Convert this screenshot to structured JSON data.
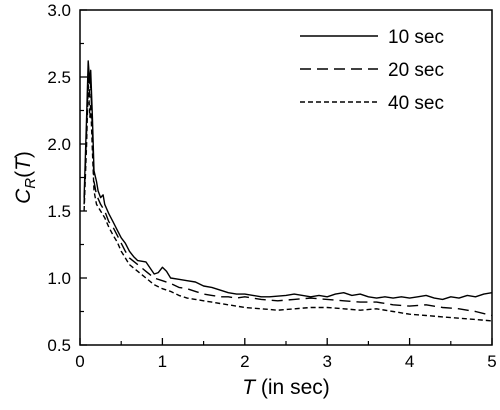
{
  "chart_data": {
    "type": "line",
    "xlabel": {
      "var": "T",
      "rest": " (in sec)"
    },
    "ylabel": {
      "base": "C",
      "sub": "R",
      "open": "(",
      "var": "T",
      "close": ")"
    },
    "xlim": [
      0,
      5
    ],
    "ylim": [
      0.5,
      3.0
    ],
    "xticks": [
      0,
      1,
      2,
      3,
      4,
      5
    ],
    "xtick_labels": [
      "0",
      "1",
      "2",
      "3",
      "4",
      "5"
    ],
    "yticks": [
      0.5,
      1.0,
      1.5,
      2.0,
      2.5,
      3.0
    ],
    "ytick_labels": [
      "0.5",
      "1.0",
      "1.5",
      "2.0",
      "2.5",
      "3.0"
    ],
    "grid": false,
    "legend_position": "top-right",
    "colors": {
      "line": "#000000",
      "axes": "#000000"
    },
    "series": [
      {
        "name": "10 sec",
        "style": "solid",
        "points": [
          [
            0.05,
            1.6
          ],
          [
            0.08,
            2.2
          ],
          [
            0.1,
            2.62
          ],
          [
            0.12,
            2.45
          ],
          [
            0.13,
            2.55
          ],
          [
            0.15,
            2.2
          ],
          [
            0.17,
            1.8
          ],
          [
            0.2,
            1.72
          ],
          [
            0.22,
            1.65
          ],
          [
            0.25,
            1.6
          ],
          [
            0.28,
            1.62
          ],
          [
            0.3,
            1.55
          ],
          [
            0.35,
            1.48
          ],
          [
            0.4,
            1.42
          ],
          [
            0.45,
            1.36
          ],
          [
            0.5,
            1.3
          ],
          [
            0.55,
            1.26
          ],
          [
            0.6,
            1.2
          ],
          [
            0.65,
            1.16
          ],
          [
            0.7,
            1.13
          ],
          [
            0.8,
            1.12
          ],
          [
            0.9,
            1.03
          ],
          [
            0.95,
            1.04
          ],
          [
            1.0,
            1.08
          ],
          [
            1.05,
            1.05
          ],
          [
            1.1,
            1.0
          ],
          [
            1.2,
            0.99
          ],
          [
            1.3,
            0.98
          ],
          [
            1.4,
            0.97
          ],
          [
            1.5,
            0.94
          ],
          [
            1.6,
            0.93
          ],
          [
            1.7,
            0.91
          ],
          [
            1.8,
            0.89
          ],
          [
            1.9,
            0.88
          ],
          [
            2.0,
            0.88
          ],
          [
            2.1,
            0.87
          ],
          [
            2.2,
            0.86
          ],
          [
            2.3,
            0.86
          ],
          [
            2.5,
            0.87
          ],
          [
            2.6,
            0.88
          ],
          [
            2.7,
            0.87
          ],
          [
            2.8,
            0.86
          ],
          [
            2.9,
            0.87
          ],
          [
            3.0,
            0.86
          ],
          [
            3.1,
            0.88
          ],
          [
            3.2,
            0.89
          ],
          [
            3.3,
            0.87
          ],
          [
            3.4,
            0.88
          ],
          [
            3.5,
            0.86
          ],
          [
            3.6,
            0.85
          ],
          [
            3.7,
            0.86
          ],
          [
            3.8,
            0.85
          ],
          [
            3.9,
            0.86
          ],
          [
            4.0,
            0.85
          ],
          [
            4.1,
            0.86
          ],
          [
            4.2,
            0.87
          ],
          [
            4.3,
            0.85
          ],
          [
            4.4,
            0.84
          ],
          [
            4.5,
            0.86
          ],
          [
            4.6,
            0.85
          ],
          [
            4.7,
            0.87
          ],
          [
            4.8,
            0.86
          ],
          [
            4.9,
            0.88
          ],
          [
            5.0,
            0.89
          ]
        ]
      },
      {
        "name": "20 sec",
        "style": "dashed",
        "points": [
          [
            0.05,
            1.55
          ],
          [
            0.08,
            2.1
          ],
          [
            0.1,
            2.55
          ],
          [
            0.12,
            2.35
          ],
          [
            0.13,
            2.45
          ],
          [
            0.15,
            2.1
          ],
          [
            0.17,
            1.72
          ],
          [
            0.2,
            1.62
          ],
          [
            0.25,
            1.55
          ],
          [
            0.3,
            1.5
          ],
          [
            0.35,
            1.42
          ],
          [
            0.4,
            1.38
          ],
          [
            0.45,
            1.32
          ],
          [
            0.5,
            1.26
          ],
          [
            0.55,
            1.2
          ],
          [
            0.6,
            1.15
          ],
          [
            0.7,
            1.1
          ],
          [
            0.8,
            1.05
          ],
          [
            0.9,
            1.0
          ],
          [
            1.0,
            0.98
          ],
          [
            1.1,
            0.96
          ],
          [
            1.2,
            0.93
          ],
          [
            1.3,
            0.92
          ],
          [
            1.4,
            0.9
          ],
          [
            1.5,
            0.88
          ],
          [
            1.6,
            0.87
          ],
          [
            1.7,
            0.86
          ],
          [
            1.8,
            0.86
          ],
          [
            1.9,
            0.85
          ],
          [
            2.0,
            0.86
          ],
          [
            2.2,
            0.84
          ],
          [
            2.4,
            0.83
          ],
          [
            2.6,
            0.84
          ],
          [
            2.8,
            0.85
          ],
          [
            3.0,
            0.84
          ],
          [
            3.2,
            0.83
          ],
          [
            3.4,
            0.82
          ],
          [
            3.6,
            0.82
          ],
          [
            3.8,
            0.8
          ],
          [
            4.0,
            0.79
          ],
          [
            4.2,
            0.8
          ],
          [
            4.4,
            0.78
          ],
          [
            4.6,
            0.77
          ],
          [
            4.8,
            0.75
          ],
          [
            5.0,
            0.72
          ]
        ]
      },
      {
        "name": "40 sec",
        "style": "dotted",
        "points": [
          [
            0.05,
            1.5
          ],
          [
            0.08,
            2.0
          ],
          [
            0.1,
            2.45
          ],
          [
            0.12,
            2.2
          ],
          [
            0.13,
            2.3
          ],
          [
            0.15,
            1.95
          ],
          [
            0.17,
            1.65
          ],
          [
            0.2,
            1.55
          ],
          [
            0.25,
            1.5
          ],
          [
            0.3,
            1.45
          ],
          [
            0.35,
            1.38
          ],
          [
            0.4,
            1.32
          ],
          [
            0.45,
            1.27
          ],
          [
            0.5,
            1.2
          ],
          [
            0.55,
            1.15
          ],
          [
            0.6,
            1.1
          ],
          [
            0.7,
            1.05
          ],
          [
            0.8,
            1.0
          ],
          [
            0.9,
            0.95
          ],
          [
            1.0,
            0.92
          ],
          [
            1.1,
            0.9
          ],
          [
            1.2,
            0.87
          ],
          [
            1.3,
            0.85
          ],
          [
            1.4,
            0.84
          ],
          [
            1.5,
            0.83
          ],
          [
            1.6,
            0.82
          ],
          [
            1.7,
            0.81
          ],
          [
            1.8,
            0.8
          ],
          [
            1.9,
            0.79
          ],
          [
            2.0,
            0.78
          ],
          [
            2.2,
            0.77
          ],
          [
            2.4,
            0.76
          ],
          [
            2.6,
            0.77
          ],
          [
            2.8,
            0.78
          ],
          [
            3.0,
            0.78
          ],
          [
            3.2,
            0.77
          ],
          [
            3.4,
            0.76
          ],
          [
            3.6,
            0.77
          ],
          [
            3.8,
            0.75
          ],
          [
            4.0,
            0.73
          ],
          [
            4.2,
            0.72
          ],
          [
            4.4,
            0.71
          ],
          [
            4.6,
            0.7
          ],
          [
            4.8,
            0.69
          ],
          [
            5.0,
            0.68
          ]
        ]
      }
    ]
  }
}
